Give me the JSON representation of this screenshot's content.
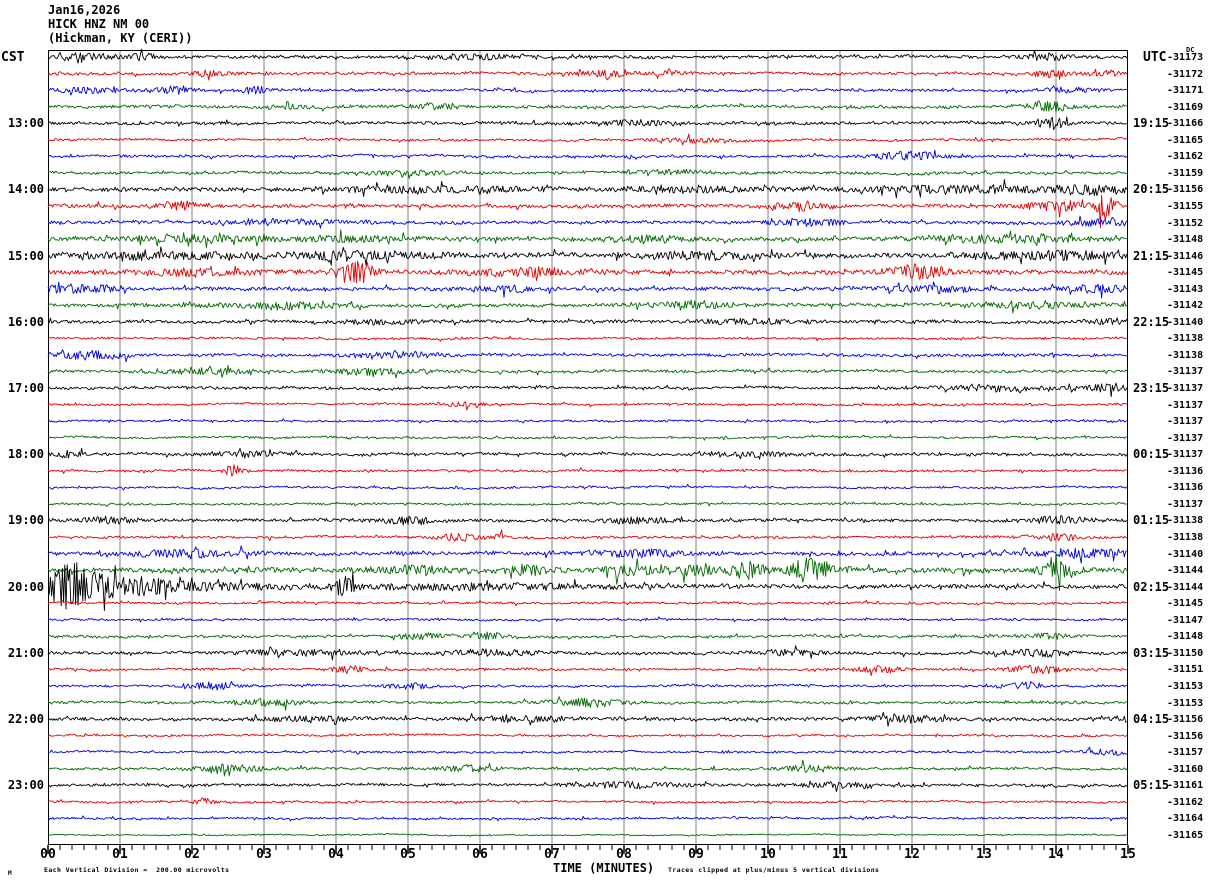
{
  "title": {
    "date": "Jan16,2026",
    "station": "HICK HNZ NM 00",
    "location": "(Hickman, KY (CERI))"
  },
  "axes": {
    "left_header": "CST",
    "right_header": "UTC",
    "dc_label": "DC",
    "x_title": "TIME (MINUTES)",
    "x_ticks": [
      "00",
      "01",
      "02",
      "03",
      "04",
      "05",
      "06",
      "07",
      "08",
      "09",
      "10",
      "11",
      "12",
      "13",
      "14",
      "15"
    ],
    "footer_left": "Each Vertical Division =  200.00 microvolts",
    "footer_right": "Traces clipped at plus/minus 5 vertical divisions",
    "corner_mark": "M"
  },
  "colors": {
    "trace_cycle": [
      "#000000",
      "#e00000",
      "#0000dd",
      "#006900"
    ],
    "grid": "#808080",
    "border": "#000000"
  },
  "chart_data": {
    "type": "line",
    "subtype": "helicorder-seismogram",
    "title": "HICK HNZ NM 00 (Hickman, KY (CERI)) Jan16,2026",
    "xlabel": "TIME (MINUTES)",
    "x_range_minutes": [
      0,
      15
    ],
    "minutes_per_row": 15,
    "minor_ticks_per_minute": 6,
    "vertical_division_microvolts": 200.0,
    "clip_divisions": 5,
    "row_color_cycle": [
      "black",
      "red",
      "blue",
      "green"
    ],
    "cst_hour_labels": [
      "13:00",
      "14:00",
      "15:00",
      "16:00",
      "17:00",
      "18:00",
      "19:00",
      "20:00",
      "21:00",
      "22:00",
      "23:00"
    ],
    "utc_hour_labels": [
      "19:15",
      "20:15",
      "21:15",
      "22:15",
      "23:15",
      "00:15",
      "01:15",
      "02:15",
      "03:15",
      "04:15",
      "05:15"
    ],
    "rows": [
      {
        "c": 0,
        "off": "-31173",
        "amp": 1.2,
        "ev": [
          [
            40,
            20,
            2.5
          ],
          [
            95,
            10,
            2.5
          ],
          [
            430,
            30,
            2
          ],
          [
            1000,
            20,
            2.5
          ]
        ]
      },
      {
        "c": 1,
        "off": "-31172",
        "amp": 1.1,
        "ev": [
          [
            160,
            15,
            2.5
          ],
          [
            555,
            18,
            3.5
          ],
          [
            620,
            12,
            2.5
          ],
          [
            1005,
            15,
            3
          ],
          [
            1060,
            12,
            2.5
          ]
        ]
      },
      {
        "c": 2,
        "off": "-31171",
        "amp": 1.1,
        "ev": [
          [
            30,
            30,
            2.5
          ],
          [
            125,
            12,
            3.5
          ],
          [
            205,
            10,
            3
          ],
          [
            1020,
            18,
            2.5
          ]
        ]
      },
      {
        "c": 3,
        "off": "-31169",
        "amp": 1.2,
        "ev": [
          [
            240,
            15,
            2
          ],
          [
            390,
            15,
            2.5
          ],
          [
            1000,
            15,
            4.5
          ]
        ]
      },
      {
        "c": 0,
        "off": "-31166",
        "amp": 1.2,
        "cst": "13:00",
        "utc": "19:15",
        "ev": [
          [
            590,
            25,
            2.5
          ],
          [
            1005,
            12,
            5
          ]
        ]
      },
      {
        "c": 1,
        "off": "-31165",
        "amp": 0.9,
        "ev": [
          [
            640,
            25,
            2
          ]
        ]
      },
      {
        "c": 2,
        "off": "-31162",
        "amp": 1.0,
        "ev": [
          [
            860,
            25,
            3.5
          ]
        ]
      },
      {
        "c": 3,
        "off": "-31159",
        "amp": 1.1,
        "ev": [
          [
            360,
            30,
            2
          ],
          [
            620,
            20,
            2
          ]
        ]
      },
      {
        "c": 0,
        "off": "-31156",
        "amp": 1.7,
        "cst": "14:00",
        "utc": "20:15",
        "ev": [
          [
            380,
            60,
            2.5
          ],
          [
            640,
            40,
            2.5
          ],
          [
            900,
            60,
            3
          ],
          [
            1040,
            30,
            3.5
          ]
        ]
      },
      {
        "c": 1,
        "off": "-31155",
        "amp": 1.4,
        "ev": [
          [
            130,
            15,
            3.5
          ],
          [
            750,
            20,
            3.5
          ],
          [
            1010,
            25,
            4
          ],
          [
            1057,
            6,
            12
          ]
        ]
      },
      {
        "c": 2,
        "off": "-31152",
        "amp": 1.3,
        "ev": [
          [
            230,
            40,
            2.5
          ],
          [
            760,
            25,
            3
          ],
          [
            1060,
            25,
            2.8
          ]
        ]
      },
      {
        "c": 3,
        "off": "-31148",
        "amp": 1.6,
        "ev": [
          [
            150,
            50,
            2.5
          ],
          [
            300,
            40,
            2.5
          ],
          [
            600,
            30,
            2.5
          ],
          [
            940,
            50,
            3
          ]
        ]
      },
      {
        "c": 0,
        "off": "-31146",
        "amp": 2.0,
        "cst": "15:00",
        "utc": "21:15",
        "ev": [
          [
            100,
            60,
            2.5
          ],
          [
            300,
            50,
            3
          ],
          [
            650,
            40,
            3
          ],
          [
            1000,
            60,
            3
          ]
        ]
      },
      {
        "c": 1,
        "off": "-31145",
        "amp": 1.8,
        "ev": [
          [
            150,
            40,
            2.5
          ],
          [
            310,
            10,
            13
          ],
          [
            480,
            40,
            3
          ],
          [
            870,
            20,
            6
          ]
        ]
      },
      {
        "c": 2,
        "off": "-31143",
        "amp": 1.4,
        "ev": [
          [
            30,
            25,
            3.5
          ],
          [
            460,
            20,
            2.5
          ],
          [
            880,
            30,
            2.5
          ],
          [
            1050,
            25,
            3
          ]
        ]
      },
      {
        "c": 3,
        "off": "-31142",
        "amp": 1.5,
        "ev": [
          [
            230,
            40,
            2.5
          ],
          [
            640,
            30,
            2.5
          ],
          [
            980,
            40,
            2.5
          ]
        ]
      },
      {
        "c": 0,
        "off": "-31140",
        "amp": 1.2,
        "cst": "16:00",
        "utc": "22:15",
        "ev": [
          [
            330,
            30,
            2
          ],
          [
            700,
            40,
            2
          ],
          [
            1060,
            15,
            2.5
          ]
        ]
      },
      {
        "c": 1,
        "off": "-31138",
        "amp": 0.8,
        "ev": []
      },
      {
        "c": 2,
        "off": "-31138",
        "amp": 1.1,
        "ev": [
          [
            40,
            25,
            4
          ],
          [
            350,
            30,
            2.5
          ]
        ]
      },
      {
        "c": 3,
        "off": "-31137",
        "amp": 1.1,
        "ev": [
          [
            160,
            30,
            2.5
          ],
          [
            320,
            30,
            2.5
          ]
        ]
      },
      {
        "c": 0,
        "off": "-31137",
        "amp": 1.1,
        "cst": "17:00",
        "utc": "23:15",
        "ev": [
          [
            950,
            40,
            2.5
          ],
          [
            1060,
            20,
            3
          ]
        ]
      },
      {
        "c": 1,
        "off": "-31137",
        "amp": 0.8,
        "ev": [
          [
            420,
            15,
            2
          ]
        ]
      },
      {
        "c": 2,
        "off": "-31137",
        "amp": 0.8,
        "ev": []
      },
      {
        "c": 3,
        "off": "-31137",
        "amp": 0.8,
        "ev": []
      },
      {
        "c": 0,
        "off": "-31137",
        "amp": 1.1,
        "cst": "18:00",
        "utc": "00:15",
        "ev": [
          [
            20,
            10,
            3.5
          ],
          [
            200,
            30,
            2
          ],
          [
            700,
            30,
            2
          ]
        ]
      },
      {
        "c": 1,
        "off": "-31136",
        "amp": 0.9,
        "ev": [
          [
            185,
            7,
            6
          ]
        ]
      },
      {
        "c": 2,
        "off": "-31136",
        "amp": 0.8,
        "ev": []
      },
      {
        "c": 3,
        "off": "-31137",
        "amp": 0.8,
        "ev": []
      },
      {
        "c": 0,
        "off": "-31138",
        "amp": 1.2,
        "cst": "19:00",
        "utc": "01:15",
        "ev": [
          [
            60,
            20,
            2.5
          ],
          [
            360,
            20,
            3
          ],
          [
            590,
            25,
            2.5
          ],
          [
            1010,
            20,
            3
          ]
        ]
      },
      {
        "c": 1,
        "off": "-31138",
        "amp": 1.0,
        "ev": [
          [
            410,
            15,
            3
          ],
          [
            450,
            6,
            3
          ],
          [
            1010,
            15,
            3
          ]
        ]
      },
      {
        "c": 2,
        "off": "-31140",
        "amp": 1.4,
        "ev": [
          [
            140,
            40,
            3
          ],
          [
            590,
            40,
            3
          ],
          [
            1040,
            40,
            3.5
          ]
        ]
      },
      {
        "c": 3,
        "off": "-31144",
        "amp": 2.0,
        "ev": [
          [
            370,
            25,
            3.5
          ],
          [
            480,
            15,
            4
          ],
          [
            580,
            20,
            4
          ],
          [
            650,
            15,
            4.5
          ],
          [
            700,
            12,
            8
          ],
          [
            762,
            15,
            11
          ],
          [
            1012,
            14,
            7
          ]
        ]
      },
      {
        "c": 0,
        "off": "-31144",
        "amp": 1.6,
        "cst": "20:00",
        "utc": "02:15",
        "ev": [
          [
            22,
            18,
            20
          ],
          [
            70,
            30,
            8
          ],
          [
            150,
            60,
            3.5
          ],
          [
            297,
            7,
            9
          ],
          [
            450,
            80,
            2.5
          ]
        ]
      },
      {
        "c": 1,
        "off": "-31145",
        "amp": 0.8,
        "ev": []
      },
      {
        "c": 2,
        "off": "-31147",
        "amp": 0.8,
        "ev": []
      },
      {
        "c": 3,
        "off": "-31148",
        "amp": 1.0,
        "ev": [
          [
            370,
            15,
            3
          ],
          [
            440,
            12,
            3
          ],
          [
            1000,
            15,
            2.5
          ]
        ]
      },
      {
        "c": 0,
        "off": "-31150",
        "amp": 1.1,
        "cst": "21:00",
        "utc": "03:15",
        "ev": [
          [
            250,
            40,
            2.5
          ],
          [
            440,
            30,
            2.5
          ],
          [
            740,
            20,
            3
          ],
          [
            990,
            25,
            3
          ]
        ]
      },
      {
        "c": 1,
        "off": "-31151",
        "amp": 0.9,
        "ev": [
          [
            300,
            12,
            3.5
          ],
          [
            830,
            15,
            3
          ],
          [
            990,
            20,
            3.5
          ]
        ]
      },
      {
        "c": 2,
        "off": "-31153",
        "amp": 0.9,
        "ev": [
          [
            165,
            15,
            3.5
          ],
          [
            360,
            15,
            2.5
          ],
          [
            975,
            15,
            3.5
          ]
        ]
      },
      {
        "c": 3,
        "off": "-31153",
        "amp": 1.0,
        "ev": [
          [
            220,
            25,
            3
          ],
          [
            540,
            25,
            3.5
          ]
        ]
      },
      {
        "c": 0,
        "off": "-31156",
        "amp": 1.3,
        "cst": "22:00",
        "utc": "04:15",
        "ev": [
          [
            260,
            30,
            2.5
          ],
          [
            470,
            30,
            3
          ],
          [
            860,
            25,
            2.5
          ],
          [
            1090,
            20,
            2.5
          ]
        ]
      },
      {
        "c": 1,
        "off": "-31156",
        "amp": 0.8,
        "ev": []
      },
      {
        "c": 2,
        "off": "-31157",
        "amp": 0.8,
        "ev": [
          [
            1060,
            20,
            2.5
          ]
        ]
      },
      {
        "c": 3,
        "off": "-31160",
        "amp": 1.0,
        "ev": [
          [
            180,
            25,
            3
          ],
          [
            420,
            20,
            3
          ],
          [
            760,
            20,
            3
          ]
        ]
      },
      {
        "c": 0,
        "off": "-31161",
        "amp": 1.0,
        "cst": "23:00",
        "utc": "05:15",
        "ev": [
          [
            580,
            40,
            2.5
          ],
          [
            800,
            30,
            2.5
          ]
        ]
      },
      {
        "c": 1,
        "off": "-31162",
        "amp": 0.8,
        "ev": [
          [
            155,
            7,
            3.5
          ]
        ]
      },
      {
        "c": 2,
        "off": "-31164",
        "amp": 0.8,
        "ev": []
      },
      {
        "c": 3,
        "off": "-31165",
        "amp": 0.45,
        "ev": []
      }
    ]
  }
}
